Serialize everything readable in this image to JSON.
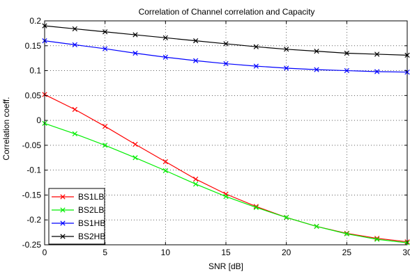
{
  "chart_data": {
    "type": "line",
    "title": "Correlation of Channel correlation and Capacity",
    "xlabel": "SNR [dB]",
    "ylabel": "Correlation coeff.",
    "xlim": [
      0,
      30
    ],
    "ylim": [
      -0.25,
      0.2
    ],
    "x_ticks": [
      0,
      5,
      10,
      15,
      20,
      25,
      30
    ],
    "x_tick_labels": [
      "0",
      "5",
      "10",
      "15",
      "20",
      "25",
      "30"
    ],
    "y_ticks": [
      -0.25,
      -0.2,
      -0.15,
      -0.1,
      -0.05,
      0,
      0.05,
      0.1,
      0.15,
      0.2
    ],
    "y_tick_labels": [
      "-0.25",
      "-0.2",
      "-0.15",
      "-0.1",
      "-0.05",
      "0",
      "0.05",
      "0.1",
      "0.15",
      "0.2"
    ],
    "grid": true,
    "legend_position": "bottom-left",
    "marker": "x",
    "x": [
      0,
      2.5,
      5,
      7.5,
      10,
      12.5,
      15,
      17.5,
      20,
      22.5,
      25,
      27.5,
      30
    ],
    "series": [
      {
        "name": "BS1LB",
        "color": "#ff0000",
        "values": [
          0.052,
          0.022,
          -0.012,
          -0.048,
          -0.083,
          -0.118,
          -0.148,
          -0.173,
          -0.195,
          -0.213,
          -0.227,
          -0.237,
          -0.244
        ]
      },
      {
        "name": "BS2LB",
        "color": "#00ee00",
        "values": [
          -0.006,
          -0.027,
          -0.05,
          -0.075,
          -0.101,
          -0.128,
          -0.153,
          -0.175,
          -0.195,
          -0.213,
          -0.228,
          -0.239,
          -0.246
        ]
      },
      {
        "name": "BS1HB",
        "color": "#0000ff",
        "values": [
          0.16,
          0.152,
          0.144,
          0.135,
          0.127,
          0.12,
          0.114,
          0.109,
          0.105,
          0.102,
          0.1,
          0.098,
          0.097
        ]
      },
      {
        "name": "BS2HB",
        "color": "#000000",
        "values": [
          0.19,
          0.184,
          0.178,
          0.172,
          0.166,
          0.16,
          0.154,
          0.148,
          0.143,
          0.139,
          0.135,
          0.133,
          0.131
        ]
      }
    ]
  }
}
